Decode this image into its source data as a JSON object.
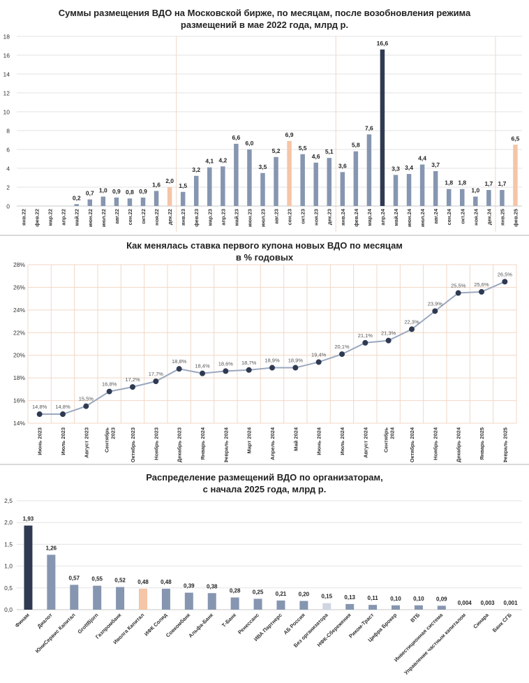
{
  "colors": {
    "bar": "#8696b0",
    "highlight": "#f4c5a6",
    "dark": "#2f3a52",
    "light": "#cfd6e2",
    "line": "#9aa8bf",
    "point": "#2f3a52",
    "grid_warm": "#f0d7c6",
    "axis": "#c9c9c9"
  },
  "chart_data": [
    {
      "type": "bar",
      "title_line1": "Суммы размещения ВДО на Московской бирже, по месяцам, после возобновления режима",
      "title_line2": "размещений в мае 2022 года, млрд р.",
      "ylim": [
        0,
        18
      ],
      "yticks": [
        "0",
        "2",
        "4",
        "6",
        "8",
        "10",
        "12",
        "14",
        "16",
        "18"
      ],
      "categories": [
        "янв.22",
        "фев.22",
        "мар.22",
        "апр.22",
        "май.22",
        "июн.22",
        "июл.22",
        "авг.22",
        "сен.22",
        "окт.22",
        "ноя.22",
        "дек.22",
        "янв.23",
        "фев.23",
        "мар.23",
        "апр.23",
        "май.23",
        "июн.23",
        "июл.23",
        "авг.23",
        "сен.23",
        "окт.23",
        "ноя.23",
        "дек.23",
        "янв.24",
        "фев.24",
        "мар.24",
        "апр.24",
        "май.24",
        "июн.24",
        "июл.24",
        "авг.24",
        "сен.24",
        "окт.24",
        "ноя.24",
        "дек.24",
        "янв.25",
        "фев.25"
      ],
      "values": [
        0,
        0,
        0,
        0,
        0.2,
        0.7,
        1.0,
        0.9,
        0.8,
        0.9,
        1.6,
        2.0,
        1.5,
        3.2,
        4.1,
        4.2,
        6.6,
        6.0,
        3.5,
        5.2,
        6.9,
        5.5,
        4.6,
        5.1,
        3.6,
        5.8,
        7.6,
        16.6,
        3.3,
        3.4,
        4.4,
        3.7,
        1.8,
        1.8,
        1.0,
        1.7,
        1.7,
        6.5
      ],
      "labels": [
        "",
        "",
        "",
        "",
        "0,2",
        "0,7",
        "1,0",
        "0,9",
        "0,8",
        "0,9",
        "1,6",
        "2,0",
        "1,5",
        "3,2",
        "4,1",
        "4,2",
        "6,6",
        "6,0",
        "3,5",
        "5,2",
        "6,9",
        "5,5",
        "4,6",
        "5,1",
        "3,6",
        "5,8",
        "7,6",
        "16,6",
        "3,3",
        "3,4",
        "4,4",
        "3,7",
        "1,8",
        "1,8",
        "1,0",
        "1,7",
        "1,7",
        "6,5"
      ],
      "bar_styles": [
        "b",
        "b",
        "b",
        "b",
        "b",
        "b",
        "b",
        "b",
        "b",
        "b",
        "b",
        "h",
        "b",
        "b",
        "b",
        "b",
        "b",
        "b",
        "b",
        "b",
        "h",
        "b",
        "b",
        "b",
        "b",
        "b",
        "b",
        "d",
        "b",
        "b",
        "b",
        "b",
        "b",
        "b",
        "b",
        "b",
        "b",
        "h"
      ]
    },
    {
      "type": "line",
      "title_line1": "Как менялась ставка первого купона новых ВДО по месяцам",
      "title_line2": "в % годовых",
      "ylim": [
        14,
        28
      ],
      "yticks": [
        "14%",
        "16%",
        "18%",
        "20%",
        "22%",
        "24%",
        "26%",
        "28%"
      ],
      "categories": [
        [
          "Июнь 2023"
        ],
        [
          "Июль 2023"
        ],
        [
          "Август 2023"
        ],
        [
          "Сентябрь",
          "2023"
        ],
        [
          "Октябрь 2023"
        ],
        [
          "Ноябрь 2023"
        ],
        [
          "Декабрь 2023"
        ],
        [
          "Январь 2024"
        ],
        [
          "Февраль 2024"
        ],
        [
          "Март 2024"
        ],
        [
          "Апрель 2024"
        ],
        [
          "Май 2024"
        ],
        [
          "Июнь 2024"
        ],
        [
          "Июль 2024"
        ],
        [
          "Август 2024"
        ],
        [
          "Сентябрь",
          "2024"
        ],
        [
          "Октябрь 2024"
        ],
        [
          "Ноябрь 2024"
        ],
        [
          "Декабрь 2024"
        ],
        [
          "Январь 2025"
        ],
        [
          "Февраль 2025"
        ]
      ],
      "values": [
        14.8,
        14.8,
        15.5,
        16.8,
        17.2,
        17.7,
        18.8,
        18.4,
        18.6,
        18.7,
        18.9,
        18.9,
        19.4,
        20.1,
        21.1,
        21.3,
        22.3,
        23.9,
        25.5,
        25.6,
        26.5
      ],
      "labels": [
        "14,8%",
        "14,8%",
        "15,5%",
        "16,8%",
        "17,2%",
        "17,7%",
        "18,8%",
        "18,4%",
        "18,6%",
        "18,7%",
        "18,9%",
        "18,9%",
        "19,4%",
        "20,1%",
        "21,1%",
        "21,3%",
        "22,3%",
        "23,9%",
        "25,5%",
        "25,6%",
        "26,5%"
      ]
    },
    {
      "type": "bar",
      "title_line1": "Распределение размещений ВДО по организаторам,",
      "title_line2": "с начала 2025 года, млрд р.",
      "ylim": [
        0,
        2.5
      ],
      "yticks": [
        "0,0",
        "0,5",
        "1,0",
        "1,5",
        "2,0",
        "2,5"
      ],
      "categories": [
        "Финам",
        "Диалот",
        "ЮниСервис Капитал",
        "GrottBjorn",
        "Газпромбанк",
        "Иволга Капитал",
        "ИФК Солид",
        "Совкомбанк",
        "Альфа-Банк",
        "Т-Банк",
        "Ренессанс",
        "ИВА Партнерс",
        "АБ Россия",
        "Без организатора",
        "НФК-Сбережения",
        "Риком-Траст",
        "Цифра Брокер",
        "ВТБ",
        "Инвестиционная система",
        "Управление частным капиталом",
        "Синара",
        "Банк СГБ"
      ],
      "values": [
        1.93,
        1.26,
        0.57,
        0.55,
        0.52,
        0.48,
        0.48,
        0.39,
        0.38,
        0.28,
        0.25,
        0.21,
        0.2,
        0.15,
        0.13,
        0.11,
        0.1,
        0.1,
        0.09,
        0.004,
        0.003,
        0.001
      ],
      "labels": [
        "1,93",
        "1,26",
        "0,57",
        "0,55",
        "0,52",
        "0,48",
        "0,48",
        "0,39",
        "0,38",
        "0,28",
        "0,25",
        "0,21",
        "0,20",
        "0,15",
        "0,13",
        "0,11",
        "0,10",
        "0,10",
        "0,09",
        "0,004",
        "0,003",
        "0,001"
      ],
      "bar_styles": [
        "d",
        "b",
        "b",
        "b",
        "b",
        "h",
        "b",
        "b",
        "b",
        "b",
        "b",
        "b",
        "b",
        "l",
        "b",
        "b",
        "b",
        "b",
        "b",
        "b",
        "b",
        "b"
      ]
    }
  ]
}
